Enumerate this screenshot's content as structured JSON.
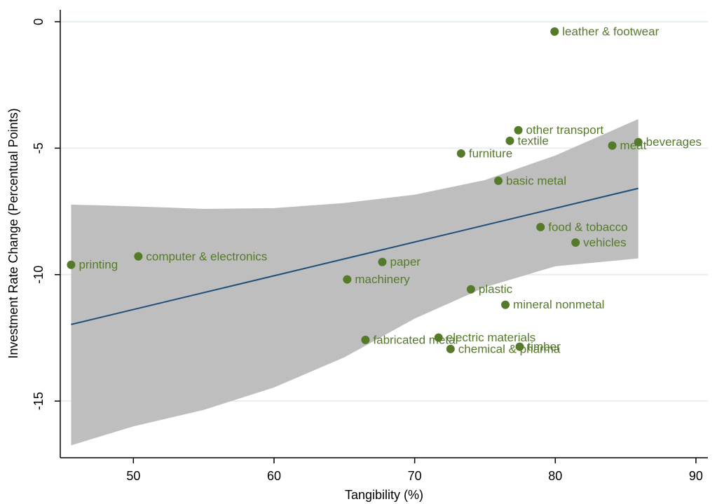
{
  "chart_data": {
    "type": "scatter",
    "x_label": "Tangibility (%)",
    "y_label": "Investment Rate Change (Percentual Points)",
    "xlim": [
      44.8,
      90.85
    ],
    "xticks": [
      50,
      60,
      70,
      80,
      90
    ],
    "ylim": [
      -17.24,
      0.47
    ],
    "yticks": [
      0,
      -5,
      -10,
      -15
    ],
    "grid": true,
    "series": [
      {
        "color": "#557a2a",
        "labels": [
          "leather & footwear",
          "other transport",
          "textile",
          "meat",
          "beverages",
          "furniture",
          "basic metal",
          "food & tobacco",
          "vehicles",
          "printing",
          "computer & electronics",
          "paper",
          "machinery",
          "plastic",
          "mineral nonmetal",
          "fabricated metal",
          "electric materials",
          "chemical & pharma",
          "timber"
        ],
        "x": [
          79.95,
          77.37,
          76.77,
          84.05,
          85.9,
          73.3,
          75.95,
          78.95,
          81.44,
          45.57,
          50.35,
          67.7,
          65.2,
          74.0,
          76.45,
          66.5,
          71.7,
          72.55,
          77.47
        ],
        "values": [
          -0.39,
          -4.29,
          -4.71,
          -4.9,
          -4.76,
          -5.21,
          -6.29,
          -8.12,
          -8.73,
          -9.61,
          -9.28,
          -9.5,
          -10.19,
          -10.58,
          -11.19,
          -12.58,
          -12.49,
          -12.94,
          -12.85
        ]
      }
    ],
    "fit": {
      "color": "#1f4e79",
      "x": [
        45.57,
        85.9
      ],
      "values": [
        -11.97,
        -6.59
      ]
    },
    "band": {
      "color": "#bebebe",
      "x": [
        45.57,
        50,
        55,
        60,
        65,
        70,
        75,
        80,
        85.9
      ],
      "upper": [
        -7.23,
        -7.3,
        -7.4,
        -7.37,
        -7.17,
        -6.84,
        -6.26,
        -5.29,
        -3.85
      ],
      "lower": [
        -16.75,
        -16.0,
        -15.35,
        -14.46,
        -13.27,
        -11.74,
        -10.5,
        -9.67,
        -9.36
      ]
    }
  }
}
